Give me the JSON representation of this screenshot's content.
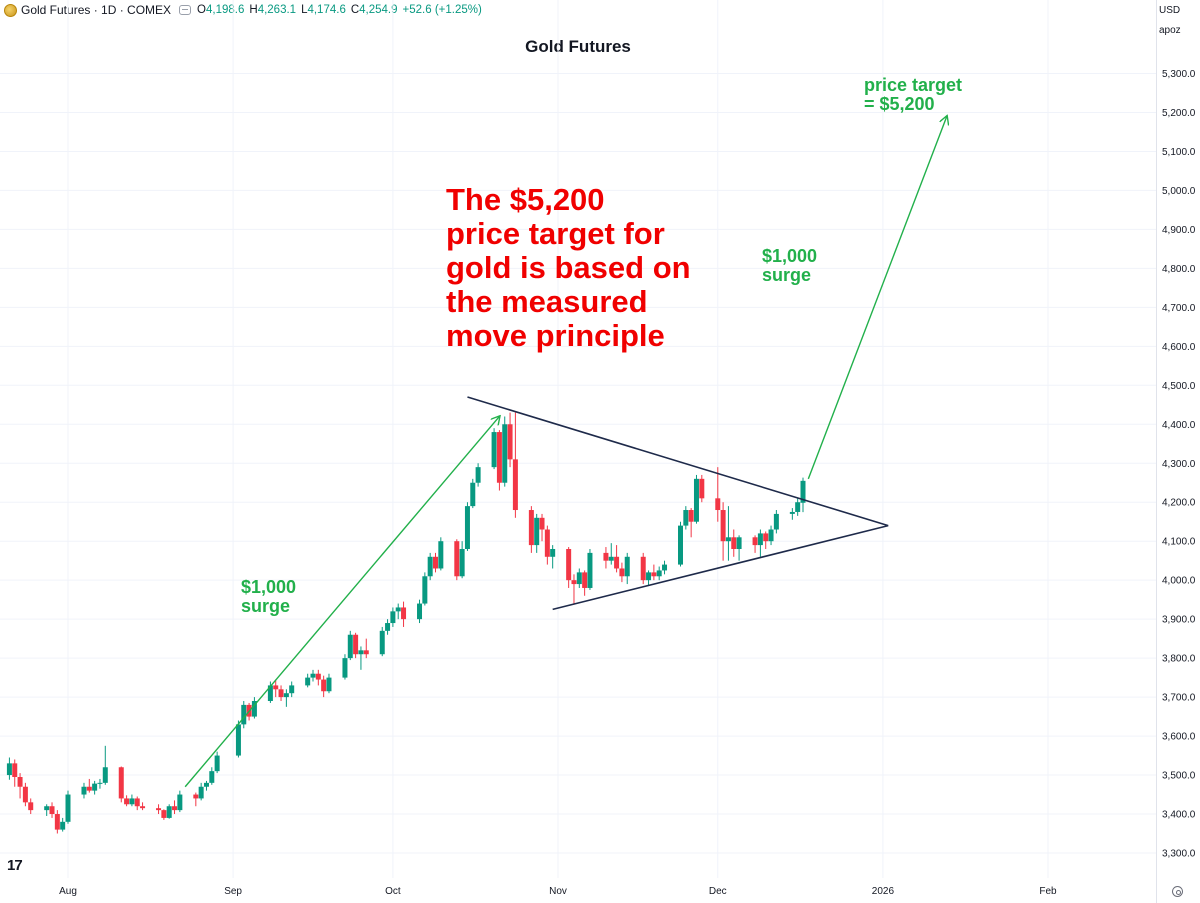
{
  "header": {
    "symbol": "Gold Futures · 1D · COMEX",
    "open_label": "O",
    "open": "4,198.6",
    "high_label": "H",
    "high": "4,263.1",
    "low_label": "L",
    "low": "4,174.6",
    "close_label": "C",
    "close": "4,254.9",
    "change": "+52.6 (+1.25%)"
  },
  "axis_buttons": {
    "currency": "USD",
    "scale": "apoz"
  },
  "annotations": {
    "headline": [
      "The $5,200",
      "price target for",
      "gold is based on",
      "the measured",
      "move principle"
    ],
    "surge_left": [
      "$1,000",
      "surge"
    ],
    "surge_right": [
      "$1,000",
      "surge"
    ],
    "target": [
      "price target",
      "= $5,200"
    ]
  },
  "colors": {
    "up": "#089981",
    "down": "#f23645",
    "annotation_green": "#22b04b",
    "headline_red": "#f00000",
    "triangle": "#1e2a4a"
  },
  "chart_data": {
    "type": "candlestick",
    "title": "Gold Futures",
    "xlabel": "",
    "ylabel": "",
    "ylim": [
      3250,
      5350
    ],
    "y_ticks": [
      3300,
      3400,
      3500,
      3600,
      3700,
      3800,
      3900,
      4000,
      4100,
      4200,
      4300,
      4400,
      4500,
      4600,
      4700,
      4800,
      4900,
      5000,
      5100,
      5200,
      5300
    ],
    "y_tick_labels": [
      "3,300.0",
      "3,400.0",
      "3,500.0",
      "3,600.0",
      "3,700.0",
      "3,800.0",
      "3,900.0",
      "4,000.0",
      "4,100.0",
      "4,200.0",
      "4,300.0",
      "4,400.0",
      "4,500.0",
      "4,600.0",
      "4,700.0",
      "4,800.0",
      "4,900.0",
      "5,000.0",
      "5,100.0",
      "5,200.0",
      "5,300.0"
    ],
    "x_ticks": [
      {
        "label": "Aug",
        "date": "2025-08-01"
      },
      {
        "label": "Sep",
        "date": "2025-09-01"
      },
      {
        "label": "Oct",
        "date": "2025-10-01"
      },
      {
        "label": "Nov",
        "date": "2025-11-01"
      },
      {
        "label": "Dec",
        "date": "2025-12-01"
      },
      {
        "label": "2026",
        "date": "2026-01-01"
      },
      {
        "label": "Feb",
        "date": "2026-02-01"
      }
    ],
    "xlim": [
      "2025-07-20",
      "2026-02-19"
    ],
    "grid": true,
    "candles": [
      {
        "date": "2025-07-21",
        "o": 3500,
        "h": 3545,
        "l": 3488,
        "c": 3530
      },
      {
        "date": "2025-07-22",
        "o": 3530,
        "h": 3540,
        "l": 3470,
        "c": 3495
      },
      {
        "date": "2025-07-23",
        "o": 3495,
        "h": 3505,
        "l": 3440,
        "c": 3470
      },
      {
        "date": "2025-07-24",
        "o": 3470,
        "h": 3480,
        "l": 3420,
        "c": 3430
      },
      {
        "date": "2025-07-25",
        "o": 3430,
        "h": 3440,
        "l": 3400,
        "c": 3410
      },
      {
        "date": "2025-07-28",
        "o": 3410,
        "h": 3425,
        "l": 3395,
        "c": 3420
      },
      {
        "date": "2025-07-29",
        "o": 3420,
        "h": 3430,
        "l": 3390,
        "c": 3400
      },
      {
        "date": "2025-07-30",
        "o": 3400,
        "h": 3410,
        "l": 3350,
        "c": 3360
      },
      {
        "date": "2025-07-31",
        "o": 3360,
        "h": 3390,
        "l": 3355,
        "c": 3380
      },
      {
        "date": "2025-08-01",
        "o": 3380,
        "h": 3460,
        "l": 3375,
        "c": 3450
      },
      {
        "date": "2025-08-04",
        "o": 3450,
        "h": 3480,
        "l": 3440,
        "c": 3470
      },
      {
        "date": "2025-08-05",
        "o": 3470,
        "h": 3490,
        "l": 3455,
        "c": 3460
      },
      {
        "date": "2025-08-06",
        "o": 3460,
        "h": 3485,
        "l": 3450,
        "c": 3478
      },
      {
        "date": "2025-08-07",
        "o": 3478,
        "h": 3490,
        "l": 3465,
        "c": 3480
      },
      {
        "date": "2025-08-08",
        "o": 3480,
        "h": 3575,
        "l": 3475,
        "c": 3520
      },
      {
        "date": "2025-08-11",
        "o": 3520,
        "h": 3522,
        "l": 3430,
        "c": 3440
      },
      {
        "date": "2025-08-12",
        "o": 3440,
        "h": 3448,
        "l": 3420,
        "c": 3425
      },
      {
        "date": "2025-08-13",
        "o": 3425,
        "h": 3450,
        "l": 3420,
        "c": 3440
      },
      {
        "date": "2025-08-14",
        "o": 3440,
        "h": 3445,
        "l": 3410,
        "c": 3420
      },
      {
        "date": "2025-08-15",
        "o": 3420,
        "h": 3430,
        "l": 3410,
        "c": 3415
      },
      {
        "date": "2025-08-18",
        "o": 3415,
        "h": 3425,
        "l": 3400,
        "c": 3410
      },
      {
        "date": "2025-08-19",
        "o": 3410,
        "h": 3412,
        "l": 3385,
        "c": 3390
      },
      {
        "date": "2025-08-20",
        "o": 3390,
        "h": 3425,
        "l": 3388,
        "c": 3420
      },
      {
        "date": "2025-08-21",
        "o": 3420,
        "h": 3435,
        "l": 3400,
        "c": 3410
      },
      {
        "date": "2025-08-22",
        "o": 3410,
        "h": 3460,
        "l": 3405,
        "c": 3450
      },
      {
        "date": "2025-08-25",
        "o": 3450,
        "h": 3455,
        "l": 3420,
        "c": 3440
      },
      {
        "date": "2025-08-26",
        "o": 3440,
        "h": 3480,
        "l": 3435,
        "c": 3470
      },
      {
        "date": "2025-08-27",
        "o": 3470,
        "h": 3485,
        "l": 3460,
        "c": 3480
      },
      {
        "date": "2025-08-28",
        "o": 3480,
        "h": 3520,
        "l": 3475,
        "c": 3510
      },
      {
        "date": "2025-08-29",
        "o": 3510,
        "h": 3560,
        "l": 3505,
        "c": 3550
      },
      {
        "date": "2025-09-02",
        "o": 3550,
        "h": 3640,
        "l": 3545,
        "c": 3630
      },
      {
        "date": "2025-09-03",
        "o": 3630,
        "h": 3690,
        "l": 3620,
        "c": 3680
      },
      {
        "date": "2025-09-04",
        "o": 3680,
        "h": 3685,
        "l": 3640,
        "c": 3650
      },
      {
        "date": "2025-09-05",
        "o": 3650,
        "h": 3700,
        "l": 3645,
        "c": 3690
      },
      {
        "date": "2025-09-08",
        "o": 3690,
        "h": 3740,
        "l": 3685,
        "c": 3730
      },
      {
        "date": "2025-09-09",
        "o": 3730,
        "h": 3745,
        "l": 3700,
        "c": 3720
      },
      {
        "date": "2025-09-10",
        "o": 3720,
        "h": 3730,
        "l": 3690,
        "c": 3700
      },
      {
        "date": "2025-09-11",
        "o": 3700,
        "h": 3720,
        "l": 3675,
        "c": 3710
      },
      {
        "date": "2025-09-12",
        "o": 3710,
        "h": 3740,
        "l": 3700,
        "c": 3730
      },
      {
        "date": "2025-09-15",
        "o": 3730,
        "h": 3760,
        "l": 3725,
        "c": 3750
      },
      {
        "date": "2025-09-16",
        "o": 3750,
        "h": 3770,
        "l": 3740,
        "c": 3760
      },
      {
        "date": "2025-09-17",
        "o": 3760,
        "h": 3770,
        "l": 3730,
        "c": 3745
      },
      {
        "date": "2025-09-18",
        "o": 3745,
        "h": 3755,
        "l": 3700,
        "c": 3715
      },
      {
        "date": "2025-09-19",
        "o": 3715,
        "h": 3760,
        "l": 3710,
        "c": 3750
      },
      {
        "date": "2025-09-22",
        "o": 3750,
        "h": 3810,
        "l": 3745,
        "c": 3800
      },
      {
        "date": "2025-09-23",
        "o": 3800,
        "h": 3870,
        "l": 3795,
        "c": 3860
      },
      {
        "date": "2025-09-24",
        "o": 3860,
        "h": 3865,
        "l": 3800,
        "c": 3810
      },
      {
        "date": "2025-09-25",
        "o": 3810,
        "h": 3830,
        "l": 3770,
        "c": 3820
      },
      {
        "date": "2025-09-26",
        "o": 3820,
        "h": 3850,
        "l": 3800,
        "c": 3810
      },
      {
        "date": "2025-09-29",
        "o": 3810,
        "h": 3880,
        "l": 3805,
        "c": 3870
      },
      {
        "date": "2025-09-30",
        "o": 3870,
        "h": 3900,
        "l": 3860,
        "c": 3890
      },
      {
        "date": "2025-10-01",
        "o": 3890,
        "h": 3930,
        "l": 3880,
        "c": 3920
      },
      {
        "date": "2025-10-02",
        "o": 3920,
        "h": 3940,
        "l": 3900,
        "c": 3930
      },
      {
        "date": "2025-10-03",
        "o": 3930,
        "h": 3945,
        "l": 3880,
        "c": 3900
      },
      {
        "date": "2025-10-06",
        "o": 3900,
        "h": 3950,
        "l": 3890,
        "c": 3940
      },
      {
        "date": "2025-10-07",
        "o": 3940,
        "h": 4020,
        "l": 3935,
        "c": 4010
      },
      {
        "date": "2025-10-08",
        "o": 4010,
        "h": 4070,
        "l": 4000,
        "c": 4060
      },
      {
        "date": "2025-10-09",
        "o": 4060,
        "h": 4070,
        "l": 4020,
        "c": 4030
      },
      {
        "date": "2025-10-10",
        "o": 4030,
        "h": 4110,
        "l": 4025,
        "c": 4100
      },
      {
        "date": "2025-10-13",
        "o": 4100,
        "h": 4105,
        "l": 4000,
        "c": 4010
      },
      {
        "date": "2025-10-14",
        "o": 4010,
        "h": 4100,
        "l": 4005,
        "c": 4080
      },
      {
        "date": "2025-10-15",
        "o": 4080,
        "h": 4200,
        "l": 4075,
        "c": 4190
      },
      {
        "date": "2025-10-16",
        "o": 4190,
        "h": 4260,
        "l": 4185,
        "c": 4250
      },
      {
        "date": "2025-10-17",
        "o": 4250,
        "h": 4300,
        "l": 4240,
        "c": 4290
      },
      {
        "date": "2025-10-20",
        "o": 4290,
        "h": 4390,
        "l": 4285,
        "c": 4380
      },
      {
        "date": "2025-10-21",
        "o": 4380,
        "h": 4385,
        "l": 4230,
        "c": 4250
      },
      {
        "date": "2025-10-22",
        "o": 4250,
        "h": 4420,
        "l": 4240,
        "c": 4400
      },
      {
        "date": "2025-10-23",
        "o": 4400,
        "h": 4430,
        "l": 4290,
        "c": 4310
      },
      {
        "date": "2025-10-24",
        "o": 4310,
        "h": 4430,
        "l": 4160,
        "c": 4180
      },
      {
        "date": "2025-10-27",
        "o": 4180,
        "h": 4190,
        "l": 4070,
        "c": 4090
      },
      {
        "date": "2025-10-28",
        "o": 4090,
        "h": 4170,
        "l": 4070,
        "c": 4160
      },
      {
        "date": "2025-10-29",
        "o": 4160,
        "h": 4170,
        "l": 4100,
        "c": 4130
      },
      {
        "date": "2025-10-30",
        "o": 4130,
        "h": 4140,
        "l": 4040,
        "c": 4060
      },
      {
        "date": "2025-10-31",
        "o": 4060,
        "h": 4090,
        "l": 4030,
        "c": 4080
      },
      {
        "date": "2025-11-03",
        "o": 4080,
        "h": 4085,
        "l": 3980,
        "c": 4000
      },
      {
        "date": "2025-11-04",
        "o": 4000,
        "h": 4015,
        "l": 3940,
        "c": 3990
      },
      {
        "date": "2025-11-05",
        "o": 3990,
        "h": 4030,
        "l": 3980,
        "c": 4020
      },
      {
        "date": "2025-11-06",
        "o": 4020,
        "h": 4025,
        "l": 3960,
        "c": 3980
      },
      {
        "date": "2025-11-07",
        "o": 3980,
        "h": 4080,
        "l": 3975,
        "c": 4070
      },
      {
        "date": "2025-11-10",
        "o": 4070,
        "h": 4085,
        "l": 4030,
        "c": 4050
      },
      {
        "date": "2025-11-11",
        "o": 4050,
        "h": 4095,
        "l": 4040,
        "c": 4060
      },
      {
        "date": "2025-11-12",
        "o": 4060,
        "h": 4090,
        "l": 4020,
        "c": 4030
      },
      {
        "date": "2025-11-13",
        "o": 4030,
        "h": 4045,
        "l": 3995,
        "c": 4010
      },
      {
        "date": "2025-11-14",
        "o": 4010,
        "h": 4070,
        "l": 3990,
        "c": 4060
      },
      {
        "date": "2025-11-17",
        "o": 4060,
        "h": 4070,
        "l": 3990,
        "c": 4000
      },
      {
        "date": "2025-11-18",
        "o": 4000,
        "h": 4025,
        "l": 3985,
        "c": 4020
      },
      {
        "date": "2025-11-19",
        "o": 4020,
        "h": 4040,
        "l": 4000,
        "c": 4010
      },
      {
        "date": "2025-11-20",
        "o": 4010,
        "h": 4035,
        "l": 4000,
        "c": 4025
      },
      {
        "date": "2025-11-21",
        "o": 4025,
        "h": 4050,
        "l": 4015,
        "c": 4040
      },
      {
        "date": "2025-11-24",
        "o": 4040,
        "h": 4150,
        "l": 4035,
        "c": 4140
      },
      {
        "date": "2025-11-25",
        "o": 4140,
        "h": 4190,
        "l": 4130,
        "c": 4180
      },
      {
        "date": "2025-11-26",
        "o": 4180,
        "h": 4185,
        "l": 4110,
        "c": 4150
      },
      {
        "date": "2025-11-27",
        "o": 4150,
        "h": 4270,
        "l": 4145,
        "c": 4260
      },
      {
        "date": "2025-11-28",
        "o": 4260,
        "h": 4270,
        "l": 4200,
        "c": 4210
      },
      {
        "date": "2025-12-01",
        "o": 4210,
        "h": 4290,
        "l": 4150,
        "c": 4180
      },
      {
        "date": "2025-12-02",
        "o": 4180,
        "h": 4200,
        "l": 4050,
        "c": 4100
      },
      {
        "date": "2025-12-03",
        "o": 4100,
        "h": 4190,
        "l": 4050,
        "c": 4110
      },
      {
        "date": "2025-12-04",
        "o": 4110,
        "h": 4130,
        "l": 4060,
        "c": 4080
      },
      {
        "date": "2025-12-05",
        "o": 4080,
        "h": 4115,
        "l": 4050,
        "c": 4110
      },
      {
        "date": "2025-12-08",
        "o": 4110,
        "h": 4115,
        "l": 4070,
        "c": 4090
      },
      {
        "date": "2025-12-09",
        "o": 4090,
        "h": 4130,
        "l": 4060,
        "c": 4120
      },
      {
        "date": "2025-12-10",
        "o": 4120,
        "h": 4125,
        "l": 4080,
        "c": 4100
      },
      {
        "date": "2025-12-11",
        "o": 4100,
        "h": 4140,
        "l": 4090,
        "c": 4130
      },
      {
        "date": "2025-12-12",
        "o": 4130,
        "h": 4180,
        "l": 4120,
        "c": 4170
      },
      {
        "date": "2025-12-15",
        "o": 4170,
        "h": 4185,
        "l": 4155,
        "c": 4175
      },
      {
        "date": "2025-12-16",
        "o": 4175,
        "h": 4210,
        "l": 4165,
        "c": 4200
      },
      {
        "date": "2025-12-17",
        "o": 4198.6,
        "h": 4263.1,
        "l": 4174.6,
        "c": 4254.9
      }
    ],
    "lines": [
      {
        "name": "triangle-upper",
        "from": {
          "date": "2025-10-15",
          "y": 4470
        },
        "to": {
          "date": "2026-01-02",
          "y": 4140
        },
        "color": "#1e2a4a"
      },
      {
        "name": "triangle-lower",
        "from": {
          "date": "2025-10-31",
          "y": 3925
        },
        "to": {
          "date": "2026-01-02",
          "y": 4140
        },
        "color": "#1e2a4a"
      }
    ],
    "arrows": [
      {
        "name": "surge-arrow-left",
        "from": {
          "date": "2025-08-23",
          "y": 3470
        },
        "to": {
          "date": "2025-10-21",
          "y": 4420
        },
        "color": "#22b04b"
      },
      {
        "name": "surge-arrow-right",
        "from": {
          "date": "2025-12-18",
          "y": 4260
        },
        "to": {
          "date": "2026-01-13",
          "y": 5190
        },
        "color": "#22b04b"
      }
    ]
  }
}
